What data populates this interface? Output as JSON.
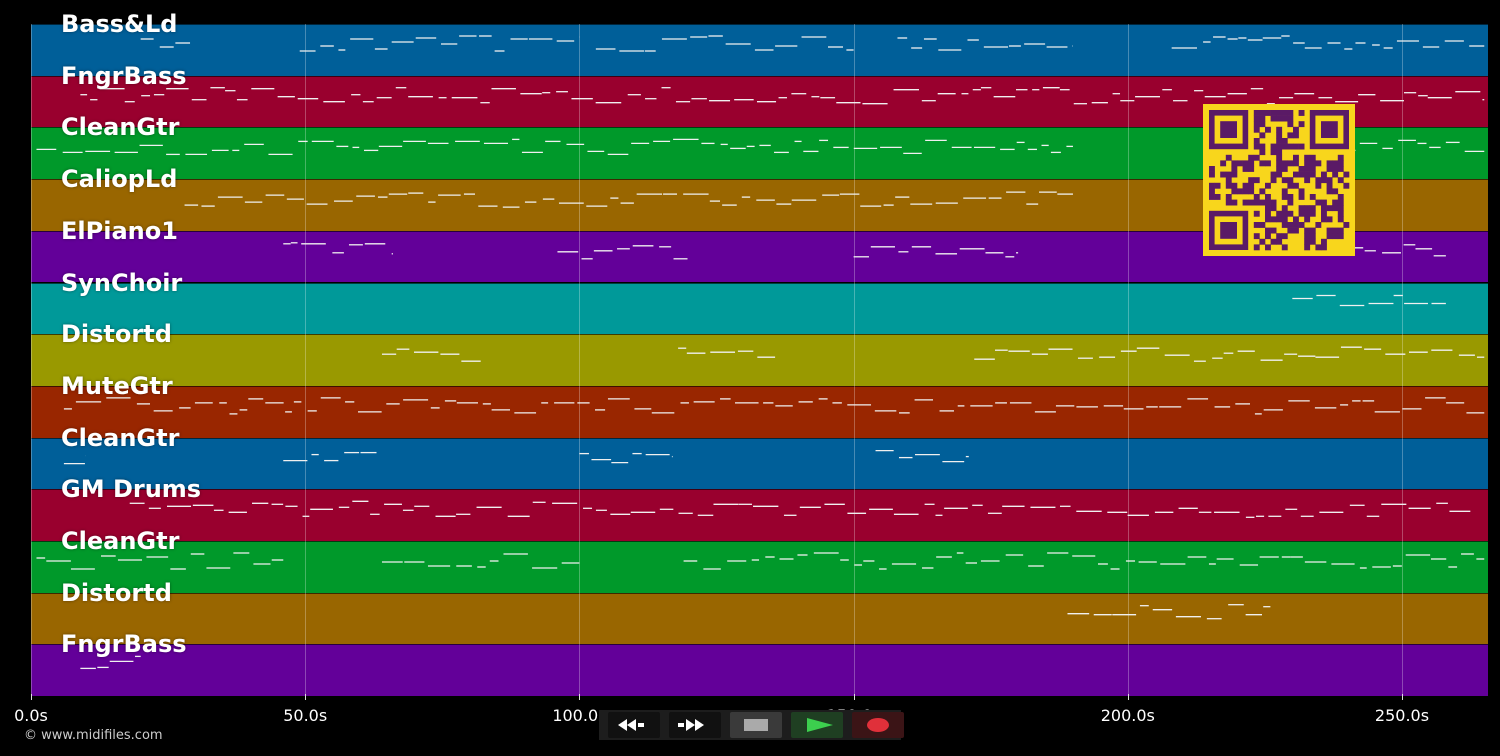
{
  "tracks": [
    {
      "name": "Bass&Ld",
      "color": "#005f99"
    },
    {
      "name": "FngrBass",
      "color": "#99002e"
    },
    {
      "name": "CleanGtr",
      "color": "#00992a"
    },
    {
      "name": "CaliopLd",
      "color": "#996600"
    },
    {
      "name": "ElPiano1",
      "color": "#630099"
    },
    {
      "name": "SynChoir",
      "color": "#009999"
    },
    {
      "name": "Distortd",
      "color": "#999900"
    },
    {
      "name": "MuteGtr",
      "color": "#992600"
    },
    {
      "name": "CleanGtr",
      "color": "#005f99"
    },
    {
      "name": "GM Drums",
      "color": "#99002e"
    },
    {
      "name": "CleanGtr",
      "color": "#00992a"
    },
    {
      "name": "Distortd",
      "color": "#996600"
    },
    {
      "name": "FngrBass",
      "color": "#630099"
    }
  ],
  "timeline": {
    "ticks": [
      "0.0s",
      "50.0s",
      "100.0s",
      "150.0s",
      "200.0s",
      "250.0s"
    ]
  },
  "transport": {
    "rewind_icon": "rewind-icon",
    "fast_forward_icon": "fast-forward-icon",
    "stop_icon": "stop-icon",
    "play_icon": "play-icon",
    "record_icon": "record-icon",
    "play_color": "#3ccf4e",
    "record_color": "#e0303a"
  },
  "qr_color": "#f8d61c",
  "qr_dark_color": "#5a1a66",
  "copyright": "© www.midifiles.com"
}
